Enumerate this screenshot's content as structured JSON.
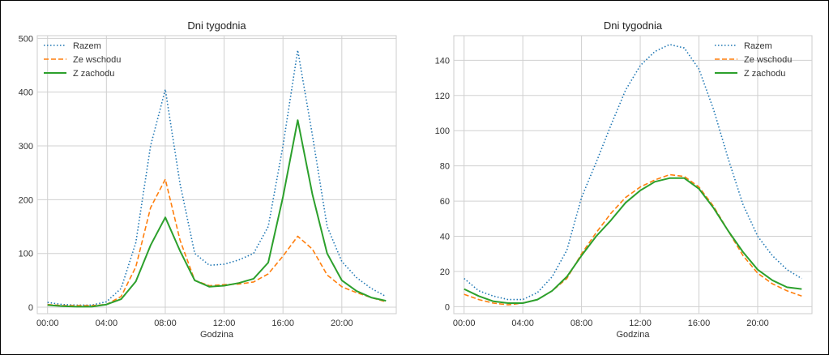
{
  "chart_data": [
    {
      "type": "line",
      "title": "Dni tygodnia",
      "xlabel": "Godzina",
      "ylabel": "",
      "xlim": [
        -0.7,
        23.7
      ],
      "ylim": [
        -12,
        505
      ],
      "xticks": [
        0,
        4,
        8,
        12,
        16,
        20
      ],
      "xtick_labels": [
        "00:00",
        "04:00",
        "08:00",
        "12:00",
        "16:00",
        "20:00"
      ],
      "yticks": [
        0,
        100,
        200,
        300,
        400,
        500
      ],
      "grid": true,
      "legend": "top-left",
      "x": [
        0,
        1,
        2,
        3,
        4,
        5,
        6,
        7,
        8,
        9,
        10,
        11,
        12,
        13,
        14,
        15,
        16,
        17,
        18,
        19,
        20,
        21,
        22,
        23
      ],
      "series": [
        {
          "name": "Razem",
          "style": "dotted",
          "color": "#1f77b4",
          "values": [
            9,
            5,
            4,
            4,
            10,
            35,
            120,
            300,
            405,
            230,
            100,
            78,
            80,
            88,
            100,
            150,
            300,
            478,
            320,
            150,
            85,
            55,
            35,
            20
          ]
        },
        {
          "name": "Ze wschodu",
          "style": "dashed",
          "color": "#ff7f0e",
          "values": [
            5,
            3,
            3,
            3,
            5,
            20,
            75,
            185,
            238,
            125,
            50,
            40,
            42,
            43,
            47,
            62,
            95,
            132,
            108,
            60,
            38,
            27,
            18,
            10
          ]
        },
        {
          "name": "Z zachodu",
          "style": "solid",
          "color": "#2ca02c",
          "values": [
            4,
            2,
            1,
            1,
            5,
            15,
            48,
            115,
            167,
            105,
            50,
            38,
            40,
            45,
            53,
            83,
            205,
            348,
            210,
            100,
            50,
            30,
            18,
            12
          ]
        }
      ]
    },
    {
      "type": "line",
      "title": "Dni tygodnia",
      "xlabel": "Godzina",
      "ylabel": "",
      "xlim": [
        -0.7,
        23.7
      ],
      "ylim": [
        -4,
        154
      ],
      "xticks": [
        0,
        4,
        8,
        12,
        16,
        20
      ],
      "xtick_labels": [
        "00:00",
        "04:00",
        "08:00",
        "12:00",
        "16:00",
        "20:00"
      ],
      "yticks": [
        0,
        20,
        40,
        60,
        80,
        100,
        120,
        140
      ],
      "grid": true,
      "legend": "top-right",
      "x": [
        0,
        1,
        2,
        3,
        4,
        5,
        6,
        7,
        8,
        9,
        10,
        11,
        12,
        13,
        14,
        15,
        16,
        17,
        18,
        19,
        20,
        21,
        22,
        23
      ],
      "series": [
        {
          "name": "Razem",
          "style": "dotted",
          "color": "#1f77b4",
          "values": [
            16,
            9,
            6,
            4,
            4,
            8,
            17,
            32,
            62,
            82,
            103,
            123,
            137,
            145,
            149,
            147,
            135,
            112,
            84,
            58,
            40,
            29,
            21,
            16
          ]
        },
        {
          "name": "Ze wschodu",
          "style": "dashed",
          "color": "#ff7f0e",
          "values": [
            7,
            4,
            2,
            1,
            2,
            4,
            9,
            16,
            30,
            42,
            53,
            62,
            68,
            72,
            75,
            74,
            68,
            57,
            43,
            29,
            19,
            13,
            9,
            6
          ]
        },
        {
          "name": "Z zachodu",
          "style": "solid",
          "color": "#2ca02c",
          "values": [
            10,
            6,
            3,
            2,
            2,
            4,
            9,
            17,
            29,
            40,
            49,
            59,
            66,
            71,
            73,
            73,
            67,
            56,
            43,
            31,
            21,
            15,
            11,
            10
          ]
        }
      ]
    }
  ]
}
